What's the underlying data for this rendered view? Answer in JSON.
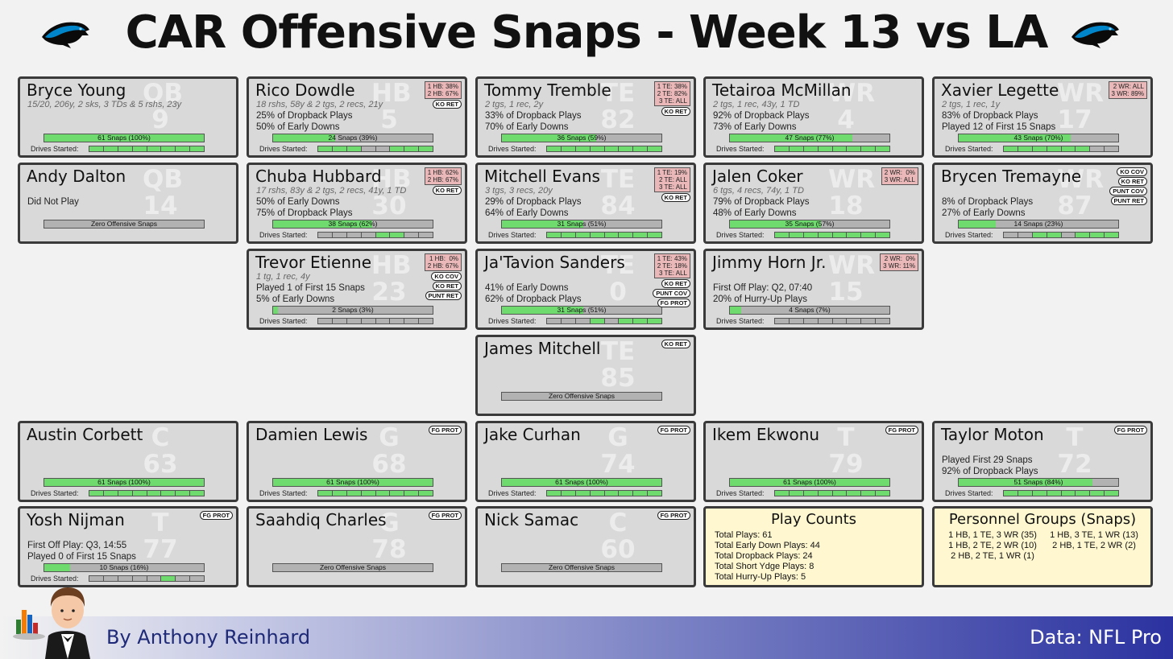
{
  "title": "CAR Offensive Snaps - Week 13 vs LA",
  "byline": "By Anthony Reinhard",
  "source": "Data: NFL Pro",
  "colors": {
    "snap_fill": "#6fdb6f",
    "card_bg": "#d9d9d9",
    "split_bg": "#eab8b8",
    "info_bg": "#fff7d0"
  },
  "chart_data": {
    "type": "table",
    "total_plays": 61,
    "players": [
      {
        "name": "Bryce Young",
        "pos": "QB",
        "num": "9",
        "stat": "15/20, 206y, 2 sks, 3 TDs & 5 rshs, 23y",
        "line1": "",
        "line2": "",
        "snaps_label": "61 Snaps (100%)",
        "snap_pct": 100,
        "drives": [
          1,
          1,
          1,
          1,
          1,
          1,
          1,
          1
        ],
        "splits": "",
        "badges": []
      },
      {
        "name": "Rico Dowdle",
        "pos": "HB",
        "num": "5",
        "stat": "18 rshs, 58y & 2 tgs, 2 recs, 21y",
        "line1": "25% of Dropback Plays",
        "line2": "50% of Early Downs",
        "snaps_label": "24 Snaps (39%)",
        "snap_pct": 39,
        "drives": [
          1,
          1,
          1,
          0,
          0,
          1,
          1,
          1
        ],
        "splits": "1 HB: 38%\n2 HB: 67%",
        "badges": [
          "KO RET"
        ]
      },
      {
        "name": "Tommy Tremble",
        "pos": "TE",
        "num": "82",
        "stat": "2 tgs, 1 rec, 2y",
        "line1": "33% of Dropback Plays",
        "line2": "70% of Early Downs",
        "snaps_label": "36 Snaps (59%)",
        "snap_pct": 59,
        "drives": [
          1,
          1,
          1,
          1,
          1,
          1,
          1,
          1
        ],
        "splits": "1 TE: 38%\n2 TE: 82%\n3 TE: ALL",
        "badges": [
          "KO RET"
        ]
      },
      {
        "name": "Tetairoa McMillan",
        "pos": "WR",
        "num": "4",
        "stat": "2 tgs, 1 rec, 43y, 1 TD",
        "line1": "92% of Dropback Plays",
        "line2": "73% of Early Downs",
        "snaps_label": "47 Snaps (77%)",
        "snap_pct": 77,
        "drives": [
          1,
          1,
          1,
          1,
          1,
          1,
          1,
          1
        ],
        "splits": "",
        "badges": []
      },
      {
        "name": "Xavier Legette",
        "pos": "WR",
        "num": "17",
        "stat": "2 tgs, 1 rec, 1y",
        "line1": "83% of Dropback Plays",
        "line2": "Played 12 of First 15 Snaps",
        "snaps_label": "43 Snaps (70%)",
        "snap_pct": 70,
        "drives": [
          1,
          1,
          1,
          1,
          1,
          1,
          0,
          0
        ],
        "splits": "2 WR: ALL\n3 WR: 89%",
        "badges": []
      },
      {
        "name": "Andy Dalton",
        "pos": "QB",
        "num": "14",
        "stat": "",
        "line1": "Did Not Play",
        "line2": "",
        "snaps_label": "Zero Offensive Snaps",
        "snap_pct": 0,
        "drives": [],
        "splits": "",
        "badges": []
      },
      {
        "name": "Chuba Hubbard",
        "pos": "HB",
        "num": "30",
        "stat": "17 rshs, 83y & 2 tgs, 2 recs, 41y, 1 TD",
        "line1": "50% of Early Downs",
        "line2": "75% of Dropback Plays",
        "snaps_label": "38 Snaps (62%)",
        "snap_pct": 62,
        "drives": [
          0,
          0,
          0,
          0,
          1,
          1,
          0,
          0
        ],
        "splits": "1 HB: 62%\n2 HB: 67%",
        "badges": [
          "KO RET"
        ]
      },
      {
        "name": "Mitchell Evans",
        "pos": "TE",
        "num": "84",
        "stat": "3 tgs, 3 recs, 20y",
        "line1": "29% of Dropback Plays",
        "line2": "64% of Early Downs",
        "snaps_label": "31 Snaps (51%)",
        "snap_pct": 51,
        "drives": [
          1,
          1,
          1,
          1,
          1,
          1,
          1,
          1
        ],
        "splits": "1 TE: 19%\n2 TE: ALL\n3 TE: ALL",
        "badges": [
          "KO RET"
        ]
      },
      {
        "name": "Jalen Coker",
        "pos": "WR",
        "num": "18",
        "stat": "6 tgs, 4 recs, 74y, 1 TD",
        "line1": "79% of Dropback Plays",
        "line2": "48% of Early Downs",
        "snaps_label": "35 Snaps (57%)",
        "snap_pct": 57,
        "drives": [
          1,
          1,
          1,
          1,
          1,
          1,
          1,
          1
        ],
        "splits": "2 WR:  0%\n3 WR: ALL",
        "badges": []
      },
      {
        "name": "Brycen Tremayne",
        "pos": "WR",
        "num": "87",
        "stat": "",
        "line1": "8% of Dropback Plays",
        "line2": "27% of Early Downs",
        "snaps_label": "14 Snaps (23%)",
        "snap_pct": 23,
        "drives": [
          0,
          0,
          1,
          1,
          0,
          1,
          1,
          1
        ],
        "splits": "",
        "badges": [
          "KO COV",
          "KO RET",
          "PUNT COV",
          "PUNT RET"
        ]
      },
      {
        "name": "Trevor Etienne",
        "pos": "HB",
        "num": "23",
        "stat": "1 tg, 1 rec, 4y",
        "line1": "Played 1 of First 15 Snaps",
        "line2": "5% of Early Downs",
        "snaps_label": "2 Snaps (3%)",
        "snap_pct": 3,
        "drives": [
          0,
          0,
          0,
          0,
          0,
          0,
          0,
          0
        ],
        "splits": "1 HB:  0%\n2 HB: 67%",
        "badges": [
          "KO COV",
          "KO RET",
          "PUNT RET"
        ]
      },
      {
        "name": "Ja'Tavion Sanders",
        "pos": "TE",
        "num": "0",
        "stat": "",
        "line1": "41% of Early Downs",
        "line2": "62% of Dropback Plays",
        "snaps_label": "31 Snaps (51%)",
        "snap_pct": 51,
        "drives": [
          0,
          0,
          0,
          1,
          0,
          1,
          1,
          1
        ],
        "splits": "1 TE: 43%\n2 TE: 18%\n3 TE: ALL",
        "badges": [
          "KO RET",
          "PUNT COV",
          "FG PROT"
        ]
      },
      {
        "name": "Jimmy Horn Jr.",
        "pos": "WR",
        "num": "15",
        "stat": "",
        "line1": "First Off Play: Q2, 07:40",
        "line2": "20% of Hurry-Up Plays",
        "snaps_label": "4 Snaps (7%)",
        "snap_pct": 7,
        "drives": [
          0,
          0,
          0,
          0,
          0,
          0,
          0,
          0
        ],
        "splits": "2 WR:  0%\n3 WR: 11%",
        "badges": []
      },
      {
        "name": "James Mitchell",
        "pos": "TE",
        "num": "85",
        "stat": "",
        "line1": "",
        "line2": "",
        "snaps_label": "Zero Offensive Snaps",
        "snap_pct": 0,
        "drives": [],
        "splits": "",
        "badges": [
          "KO RET"
        ]
      },
      {
        "name": "Austin Corbett",
        "pos": "C",
        "num": "63",
        "stat": "",
        "line1": "",
        "line2": "",
        "snaps_label": "61 Snaps (100%)",
        "snap_pct": 100,
        "drives": [
          1,
          1,
          1,
          1,
          1,
          1,
          1,
          1
        ],
        "splits": "",
        "badges": []
      },
      {
        "name": "Damien Lewis",
        "pos": "G",
        "num": "68",
        "stat": "",
        "line1": "",
        "line2": "",
        "snaps_label": "61 Snaps (100%)",
        "snap_pct": 100,
        "drives": [
          1,
          1,
          1,
          1,
          1,
          1,
          1,
          1
        ],
        "splits": "",
        "badges": [
          "FG PROT"
        ]
      },
      {
        "name": "Jake Curhan",
        "pos": "G",
        "num": "74",
        "stat": "",
        "line1": "",
        "line2": "",
        "snaps_label": "61 Snaps (100%)",
        "snap_pct": 100,
        "drives": [
          1,
          1,
          1,
          1,
          1,
          1,
          1,
          1
        ],
        "splits": "",
        "badges": [
          "FG PROT"
        ]
      },
      {
        "name": "Ikem Ekwonu",
        "pos": "T",
        "num": "79",
        "stat": "",
        "line1": "",
        "line2": "",
        "snaps_label": "61 Snaps (100%)",
        "snap_pct": 100,
        "drives": [
          1,
          1,
          1,
          1,
          1,
          1,
          1,
          1
        ],
        "splits": "",
        "badges": [
          "FG PROT"
        ]
      },
      {
        "name": "Taylor Moton",
        "pos": "T",
        "num": "72",
        "stat": "",
        "line1": "Played First 29 Snaps",
        "line2": "92% of Dropback Plays",
        "snaps_label": "51 Snaps (84%)",
        "snap_pct": 84,
        "drives": [
          1,
          1,
          1,
          1,
          1,
          1,
          1,
          1
        ],
        "splits": "",
        "badges": [
          "FG PROT"
        ]
      },
      {
        "name": "Yosh Nijman",
        "pos": "T",
        "num": "77",
        "stat": "",
        "line1": "First Off Play: Q3, 14:55",
        "line2": "Played 0 of First 15 Snaps",
        "snaps_label": "10 Snaps (16%)",
        "snap_pct": 16,
        "drives": [
          0,
          0,
          0,
          0,
          0,
          1,
          0,
          0
        ],
        "splits": "",
        "badges": [
          "FG PROT"
        ]
      },
      {
        "name": "Saahdiq Charles",
        "pos": "G",
        "num": "78",
        "stat": "",
        "line1": "",
        "line2": "",
        "snaps_label": "Zero Offensive Snaps",
        "snap_pct": 0,
        "drives": [],
        "splits": "",
        "badges": [
          "FG PROT"
        ]
      },
      {
        "name": "Nick Samac",
        "pos": "C",
        "num": "60",
        "stat": "",
        "line1": "",
        "line2": "",
        "snaps_label": "Zero Offensive Snaps",
        "snap_pct": 0,
        "drives": [],
        "splits": "",
        "badges": [
          "FG PROT"
        ]
      }
    ],
    "play_counts": {
      "title": "Play Counts",
      "lines": [
        "Total Plays: 61",
        "Total Early Down Plays: 44",
        "Total Dropback Plays: 24",
        "Total Short Ydge Plays: 8",
        "Total Hurry-Up Plays: 5"
      ]
    },
    "personnel": {
      "title": "Personnel Groups (Snaps)",
      "groups": [
        "1 HB, 1 TE, 3 WR (35)",
        "1 HB, 3 TE, 1 WR (13)",
        "1 HB, 2 TE, 2 WR (10)",
        "2 HB, 1 TE, 2 WR (2)",
        "2 HB, 2 TE, 1 WR (1)"
      ]
    }
  },
  "drives_label": "Drives Started:"
}
